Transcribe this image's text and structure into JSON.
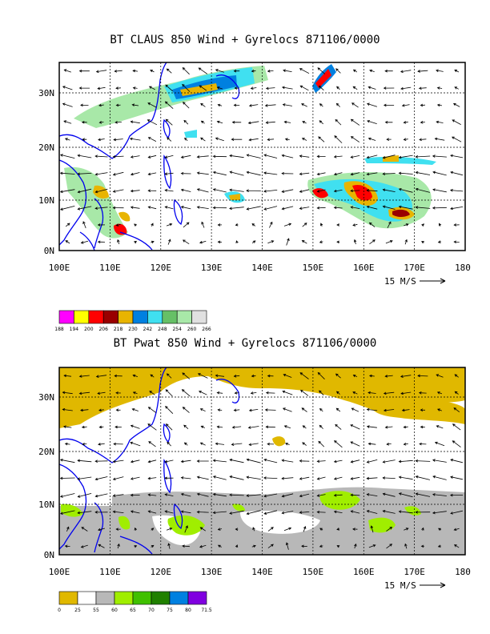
{
  "maps": [
    {
      "title": "BT CLAUS 850 Wind + Gyrelocs 871106/0000",
      "x_ticks": [
        "100E",
        "110E",
        "120E",
        "130E",
        "140E",
        "150E",
        "160E",
        "170E",
        "180"
      ],
      "y_ticks": [
        "30N",
        "20N",
        "10N",
        "0N"
      ],
      "vector_ref": "15 M/S",
      "legend": {
        "colors": [
          "#ff00ff",
          "#ffff00",
          "#ff0000",
          "#990000",
          "#e8b400",
          "#0080e0",
          "#40e0f0",
          "#66c066",
          "#a8e8a8",
          "#e0e0e0"
        ],
        "labels": [
          "188",
          "194",
          "200",
          "206",
          "218",
          "230",
          "242",
          "248",
          "254",
          "260",
          "266"
        ]
      }
    },
    {
      "title": "BT Pwat 850 Wind + Gyrelocs 871106/0000",
      "x_ticks": [
        "100E",
        "110E",
        "120E",
        "130E",
        "140E",
        "150E",
        "160E",
        "170E",
        "180"
      ],
      "y_ticks": [
        "30N",
        "20N",
        "10N",
        "0N"
      ],
      "vector_ref": "15 M/S",
      "legend": {
        "colors": [
          "#e0b800",
          "#ffffff",
          "#b8b8b8",
          "#a0ee00",
          "#40c000",
          "#208000",
          "#0080e0",
          "#8000e0"
        ],
        "labels": [
          "0",
          "25",
          "55",
          "60",
          "65",
          "70",
          "75",
          "80",
          "71.5"
        ]
      }
    }
  ],
  "colors": {
    "coastline": "#0000ee",
    "frame": "#000000"
  }
}
